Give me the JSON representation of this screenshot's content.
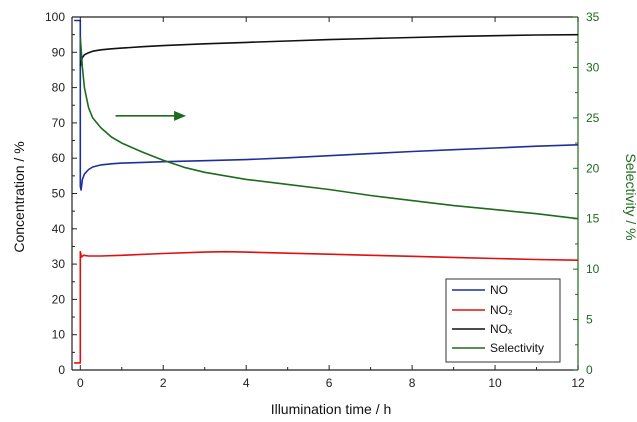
{
  "chart_data": {
    "type": "line",
    "xlabel": "Illumination time / h",
    "ylabel_left": "Concentration / %",
    "ylabel_right": "Selectivity / %",
    "xlim": [
      -0.2,
      12
    ],
    "ylim_left": [
      0,
      100
    ],
    "ylim_right": [
      0,
      35
    ],
    "x_ticks": [
      0,
      2,
      4,
      6,
      8,
      10,
      12
    ],
    "y_left_ticks": [
      0,
      10,
      20,
      30,
      40,
      50,
      60,
      70,
      80,
      90,
      100
    ],
    "y_right_ticks": [
      0,
      5,
      10,
      15,
      20,
      25,
      30,
      35
    ],
    "grid": false,
    "legend_position": "bottom-right",
    "colors": {
      "NO": "#1f2f9a",
      "NO2": "#e01010",
      "NOx": "#111111",
      "Selectivity": "#1e6b1e",
      "right_axis": "#1e6b1e",
      "reference": "#444444"
    },
    "series": [
      {
        "name": "NO",
        "key": "NO",
        "axis": "left",
        "x": [
          -0.15,
          0.0,
          0.0,
          0.02,
          0.05,
          0.1,
          0.2,
          0.3,
          0.5,
          0.75,
          1,
          1.5,
          2,
          3,
          4,
          5,
          6,
          7,
          8,
          9,
          10,
          11,
          12
        ],
        "y": [
          99,
          99,
          52,
          51,
          54,
          55.5,
          56.8,
          57.5,
          58.1,
          58.4,
          58.6,
          58.8,
          59,
          59.3,
          59.6,
          60.1,
          60.7,
          61.3,
          61.9,
          62.4,
          62.9,
          63.4,
          63.8
        ]
      },
      {
        "name": "NO₂",
        "key": "NO2",
        "axis": "left",
        "x": [
          -0.15,
          0.0,
          0.0,
          0.03,
          0.08,
          0.2,
          0.5,
          1,
          2,
          3,
          3.5,
          4,
          5,
          6,
          7,
          8,
          9,
          10,
          11,
          12
        ],
        "y": [
          2,
          2,
          33.5,
          32,
          32.5,
          32.3,
          32.3,
          32.5,
          33,
          33.4,
          33.5,
          33.4,
          33.1,
          32.8,
          32.5,
          32.2,
          31.9,
          31.6,
          31.3,
          31.1
        ]
      },
      {
        "name": "NOₓ",
        "key": "NOx",
        "axis": "left",
        "x": [
          0.0,
          0.02,
          0.05,
          0.1,
          0.2,
          0.3,
          0.5,
          0.75,
          1,
          1.5,
          2,
          3,
          4,
          5,
          6,
          7,
          8,
          9,
          10,
          11,
          12
        ],
        "y": [
          86,
          87.5,
          88.5,
          89.3,
          89.9,
          90.3,
          90.7,
          91,
          91.2,
          91.6,
          91.9,
          92.4,
          92.8,
          93.2,
          93.6,
          93.9,
          94.2,
          94.5,
          94.7,
          94.9,
          95
        ]
      },
      {
        "name": "Selectivity",
        "key": "Selectivity",
        "axis": "right",
        "x": [
          0.0,
          0.05,
          0.1,
          0.2,
          0.3,
          0.5,
          0.75,
          1,
          1.5,
          2,
          2.5,
          3,
          4,
          5,
          6,
          7,
          8,
          9,
          10,
          11,
          12
        ],
        "y": [
          33,
          30,
          28,
          26,
          25,
          24,
          23.1,
          22.5,
          21.6,
          20.8,
          20.1,
          19.6,
          18.9,
          18.4,
          17.9,
          17.3,
          16.8,
          16.3,
          15.9,
          15.5,
          15
        ]
      }
    ],
    "reference_line": {
      "axis": "left",
      "y": 100
    },
    "annotation_arrow": {
      "axis": "left",
      "x_start": 0.85,
      "x_end": 2.55,
      "y": 72,
      "points_to": "right_axis"
    }
  }
}
